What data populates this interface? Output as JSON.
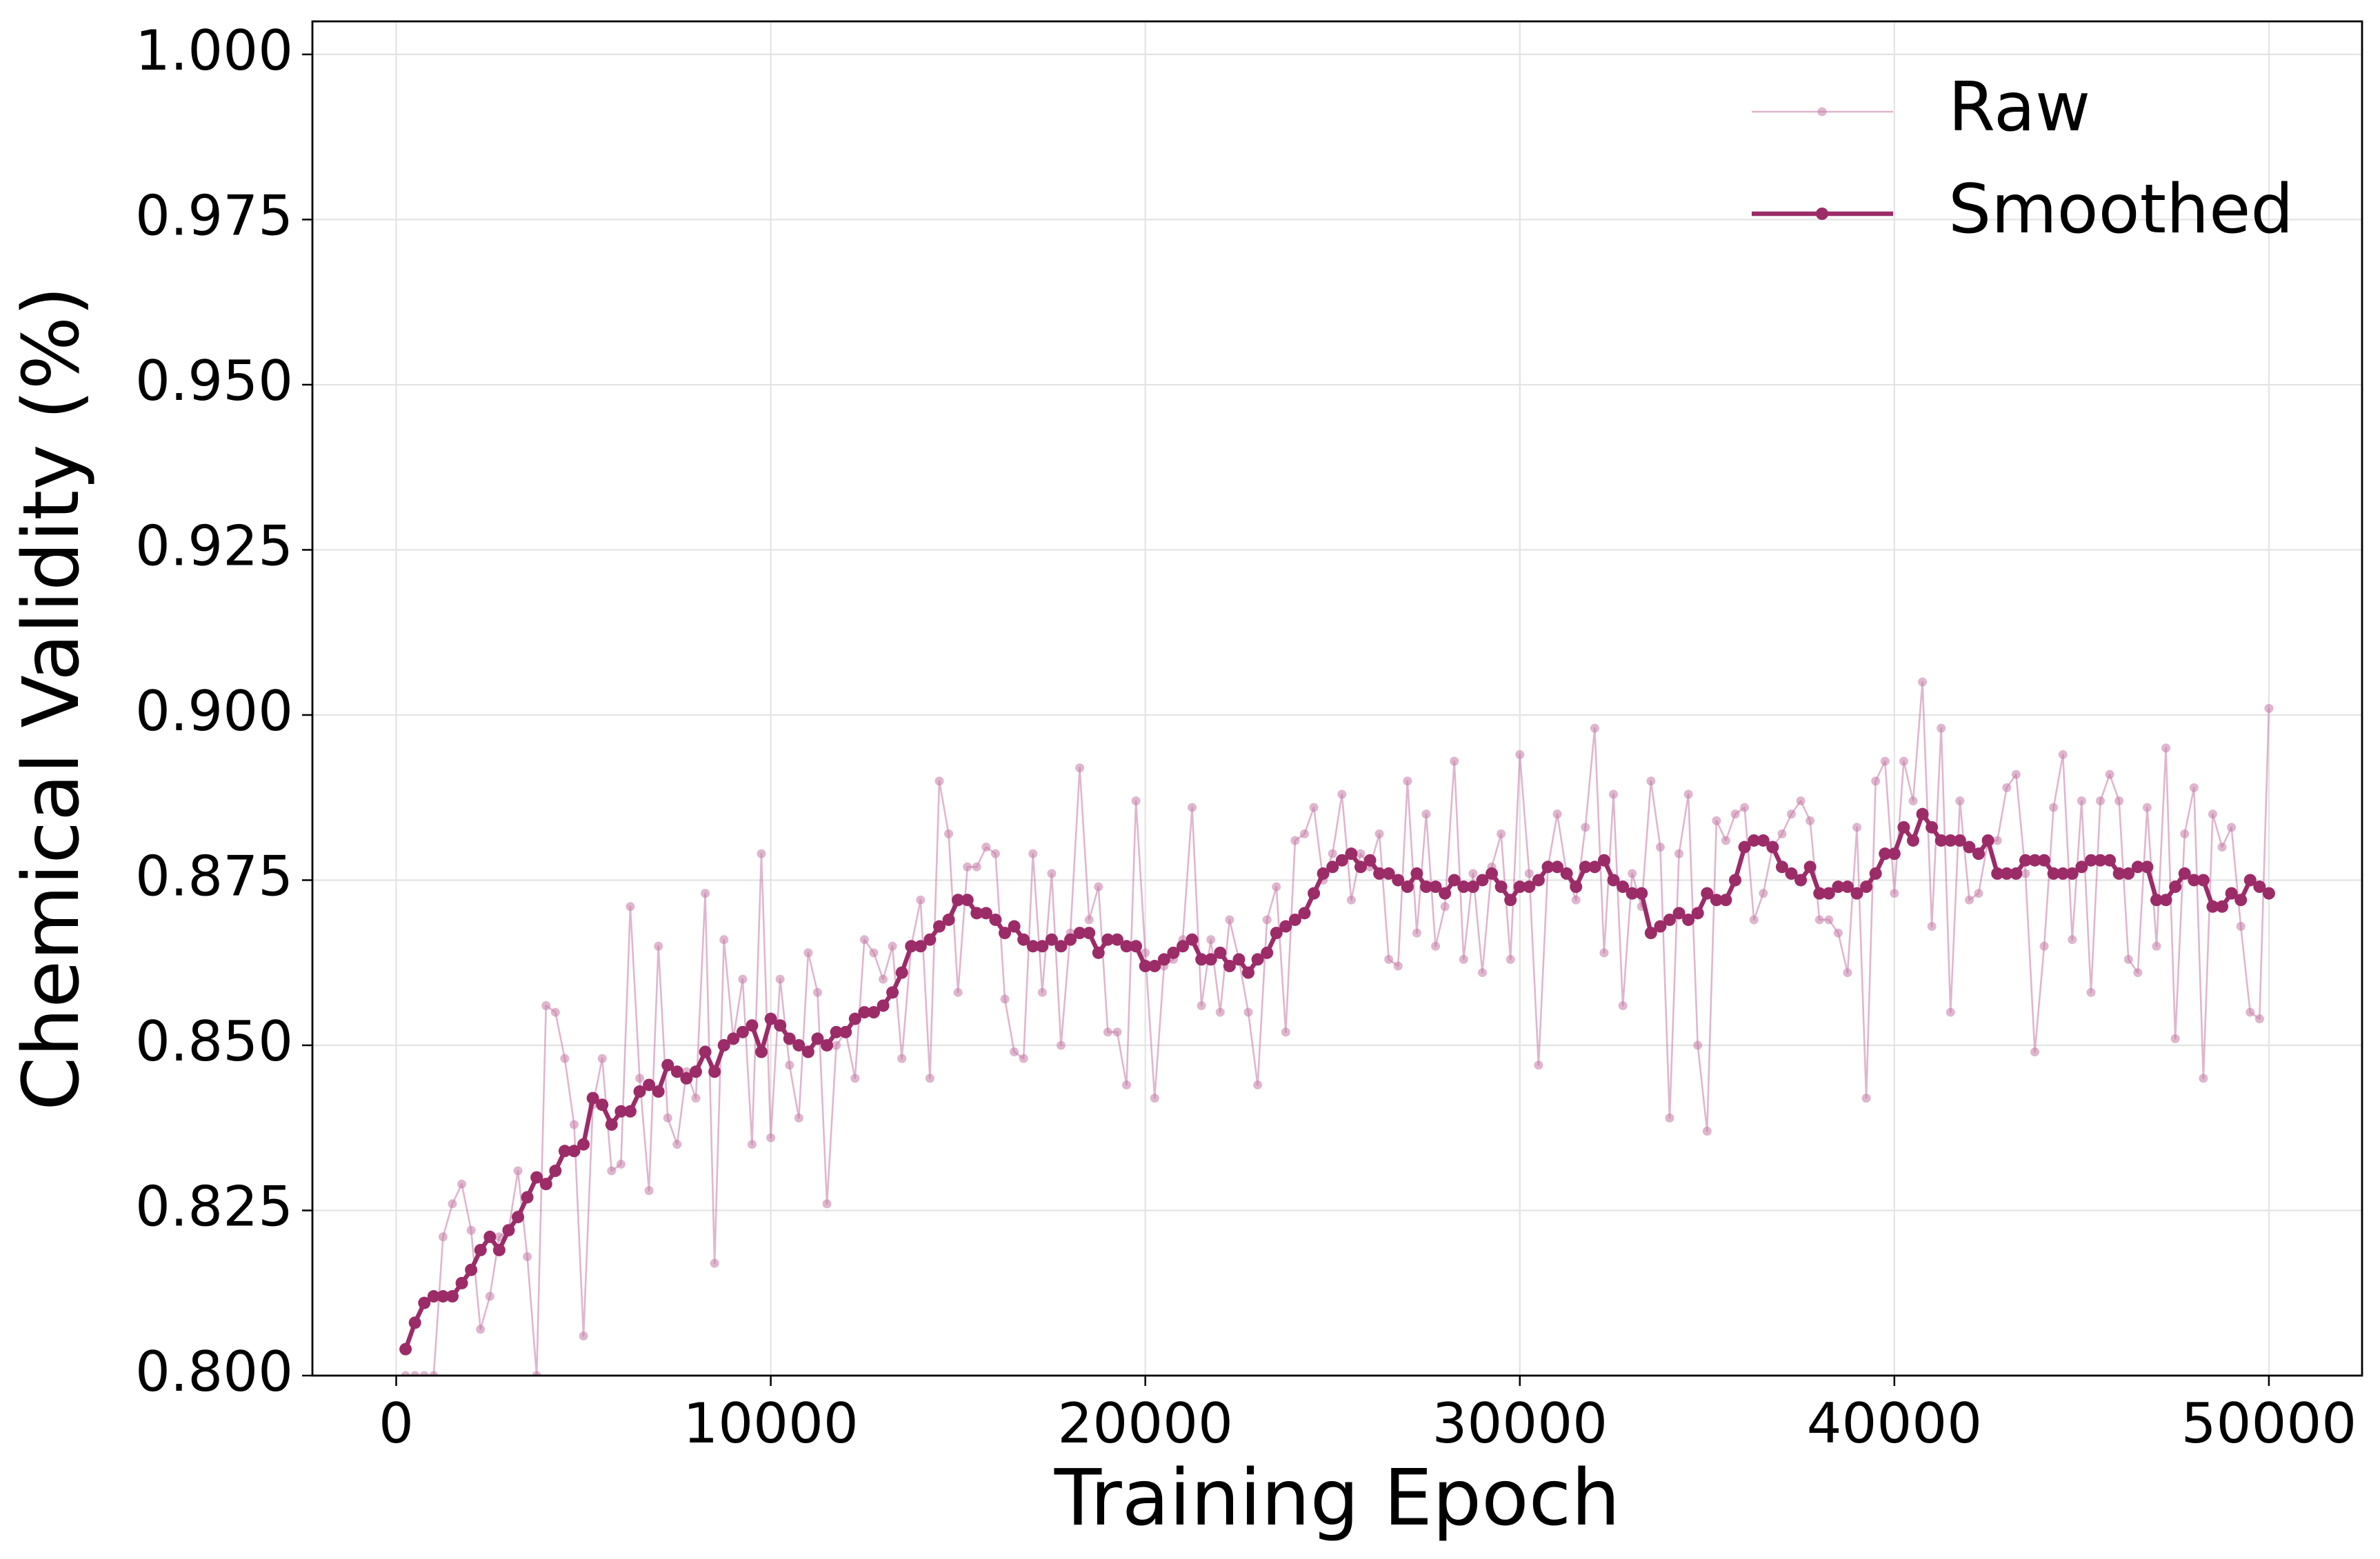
{
  "chart_data": {
    "type": "line",
    "xlabel": "Training Epoch",
    "ylabel": "Chemical Validity (%)",
    "x": [
      250,
      500,
      750,
      1000,
      1250,
      1500,
      1750,
      2000,
      2250,
      2500,
      2750,
      3000,
      3250,
      3500,
      3750,
      4000,
      4250,
      4500,
      4750,
      5000,
      5250,
      5500,
      5750,
      6000,
      6250,
      6500,
      6750,
      7000,
      7250,
      7500,
      7750,
      8000,
      8250,
      8500,
      8750,
      9000,
      9250,
      9500,
      9750,
      10000,
      10250,
      10500,
      10750,
      11000,
      11250,
      11500,
      11750,
      12000,
      12250,
      12500,
      12750,
      13000,
      13250,
      13500,
      13750,
      14000,
      14250,
      14500,
      14750,
      15000,
      15250,
      15500,
      15750,
      16000,
      16250,
      16500,
      16750,
      17000,
      17250,
      17500,
      17750,
      18000,
      18250,
      18500,
      18750,
      19000,
      19250,
      19500,
      19750,
      20000,
      20250,
      20500,
      20750,
      21000,
      21250,
      21500,
      21750,
      22000,
      22250,
      22500,
      22750,
      23000,
      23250,
      23500,
      23750,
      24000,
      24250,
      24500,
      24750,
      25000,
      25250,
      25500,
      25750,
      26000,
      26250,
      26500,
      26750,
      27000,
      27250,
      27500,
      27750,
      28000,
      28250,
      28500,
      28750,
      29000,
      29250,
      29500,
      29750,
      30000,
      30250,
      30500,
      30750,
      31000,
      31250,
      31500,
      31750,
      32000,
      32250,
      32500,
      32750,
      33000,
      33250,
      33500,
      33750,
      34000,
      34250,
      34500,
      34750,
      35000,
      35250,
      35500,
      35750,
      36000,
      36250,
      36500,
      36750,
      37000,
      37250,
      37500,
      37750,
      38000,
      38250,
      38500,
      38750,
      39000,
      39250,
      39500,
      39750,
      40000,
      40250,
      40500,
      40750,
      41000,
      41250,
      41500,
      41750,
      42000,
      42250,
      42500,
      42750,
      43000,
      43250,
      43500,
      43750,
      44000,
      44250,
      44500,
      44750,
      45000,
      45250,
      45500,
      45750,
      46000,
      46250,
      46500,
      46750,
      47000,
      47250,
      47500,
      47750,
      48000,
      48250,
      48500,
      48750,
      49000,
      49250,
      49500,
      49750,
      50000
    ],
    "series": [
      {
        "name": "Raw",
        "color": "#c47aa5",
        "values": [
          0.8,
          0.8,
          0.8,
          0.8,
          0.821,
          0.826,
          0.829,
          0.822,
          0.807,
          0.812,
          0.821,
          0.822,
          0.831,
          0.818,
          0.8,
          0.856,
          0.855,
          0.848,
          0.838,
          0.806,
          0.841,
          0.848,
          0.831,
          0.832,
          0.871,
          0.845,
          0.828,
          0.865,
          0.839,
          0.835,
          0.846,
          0.842,
          0.873,
          0.817,
          0.866,
          0.851,
          0.86,
          0.835,
          0.879,
          0.836,
          0.86,
          0.847,
          0.839,
          0.864,
          0.858,
          0.826,
          0.85,
          0.852,
          0.845,
          0.866,
          0.864,
          0.86,
          0.865,
          0.848,
          0.865,
          0.872,
          0.845,
          0.89,
          0.882,
          0.858,
          0.877,
          0.877,
          0.88,
          0.879,
          0.857,
          0.849,
          0.848,
          0.879,
          0.858,
          0.876,
          0.85,
          0.867,
          0.892,
          0.869,
          0.874,
          0.852,
          0.852,
          0.844,
          0.887,
          0.864,
          0.842,
          0.862,
          0.863,
          0.866,
          0.886,
          0.856,
          0.866,
          0.855,
          0.869,
          0.863,
          0.855,
          0.844,
          0.869,
          0.874,
          0.852,
          0.881,
          0.882,
          0.886,
          0.875,
          0.879,
          0.888,
          0.872,
          0.879,
          0.877,
          0.882,
          0.863,
          0.862,
          0.89,
          0.867,
          0.885,
          0.865,
          0.871,
          0.893,
          0.863,
          0.876,
          0.861,
          0.877,
          0.882,
          0.863,
          0.894,
          0.876,
          0.847,
          0.877,
          0.885,
          0.876,
          0.872,
          0.883,
          0.898,
          0.864,
          0.888,
          0.856,
          0.876,
          0.871,
          0.89,
          0.88,
          0.839,
          0.879,
          0.888,
          0.85,
          0.837,
          0.884,
          0.881,
          0.885,
          0.886,
          0.869,
          0.873,
          0.88,
          0.882,
          0.885,
          0.887,
          0.884,
          0.869,
          0.869,
          0.867,
          0.861,
          0.883,
          0.842,
          0.89,
          0.893,
          0.873,
          0.893,
          0.887,
          0.905,
          0.868,
          0.898,
          0.855,
          0.887,
          0.872,
          0.873,
          0.881,
          0.881,
          0.889,
          0.891,
          0.876,
          0.849,
          0.865,
          0.886,
          0.894,
          0.866,
          0.887,
          0.858,
          0.887,
          0.891,
          0.887,
          0.863,
          0.861,
          0.886,
          0.865,
          0.895,
          0.851,
          0.882,
          0.889,
          0.845,
          0.885,
          0.88,
          0.883,
          0.868,
          0.855,
          0.854,
          0.901
        ]
      },
      {
        "name": "Smoothed",
        "color": "#9b2c68",
        "values": [
          0.804,
          0.808,
          0.811,
          0.812,
          0.812,
          0.812,
          0.814,
          0.816,
          0.819,
          0.821,
          0.819,
          0.822,
          0.824,
          0.827,
          0.83,
          0.829,
          0.831,
          0.834,
          0.834,
          0.835,
          0.842,
          0.841,
          0.838,
          0.84,
          0.84,
          0.843,
          0.844,
          0.843,
          0.847,
          0.846,
          0.845,
          0.846,
          0.849,
          0.846,
          0.85,
          0.851,
          0.852,
          0.853,
          0.849,
          0.854,
          0.853,
          0.851,
          0.85,
          0.849,
          0.851,
          0.85,
          0.852,
          0.852,
          0.854,
          0.855,
          0.855,
          0.856,
          0.858,
          0.861,
          0.865,
          0.865,
          0.866,
          0.868,
          0.869,
          0.872,
          0.872,
          0.87,
          0.87,
          0.869,
          0.867,
          0.868,
          0.866,
          0.865,
          0.865,
          0.866,
          0.865,
          0.866,
          0.867,
          0.867,
          0.864,
          0.866,
          0.866,
          0.865,
          0.865,
          0.862,
          0.862,
          0.863,
          0.864,
          0.865,
          0.866,
          0.863,
          0.863,
          0.864,
          0.862,
          0.863,
          0.861,
          0.863,
          0.864,
          0.867,
          0.868,
          0.869,
          0.87,
          0.873,
          0.876,
          0.877,
          0.878,
          0.879,
          0.877,
          0.878,
          0.876,
          0.876,
          0.875,
          0.874,
          0.876,
          0.874,
          0.874,
          0.873,
          0.875,
          0.874,
          0.874,
          0.875,
          0.876,
          0.874,
          0.872,
          0.874,
          0.874,
          0.875,
          0.877,
          0.877,
          0.876,
          0.874,
          0.877,
          0.877,
          0.878,
          0.875,
          0.874,
          0.873,
          0.873,
          0.867,
          0.868,
          0.869,
          0.87,
          0.869,
          0.87,
          0.873,
          0.872,
          0.872,
          0.875,
          0.88,
          0.881,
          0.881,
          0.88,
          0.877,
          0.876,
          0.875,
          0.877,
          0.873,
          0.873,
          0.874,
          0.874,
          0.873,
          0.874,
          0.876,
          0.879,
          0.879,
          0.883,
          0.881,
          0.885,
          0.883,
          0.881,
          0.881,
          0.881,
          0.88,
          0.879,
          0.881,
          0.876,
          0.876,
          0.876,
          0.878,
          0.878,
          0.878,
          0.876,
          0.876,
          0.876,
          0.877,
          0.878,
          0.878,
          0.878,
          0.876,
          0.876,
          0.877,
          0.877,
          0.872,
          0.872,
          0.874,
          0.876,
          0.875,
          0.875,
          0.871,
          0.871,
          0.873,
          0.872,
          0.875,
          0.874,
          0.873
        ]
      }
    ],
    "xlim": [
      -2237.5,
      52487.5
    ],
    "xticks": [
      0,
      10000,
      20000,
      30000,
      40000,
      50000
    ],
    "ylim": [
      0.8,
      1.005
    ],
    "yticks": [
      {
        "value": 0.8,
        "label": "0.800"
      },
      {
        "value": 0.825,
        "label": "0.825"
      },
      {
        "value": 0.85,
        "label": "0.850"
      },
      {
        "value": 0.875,
        "label": "0.875"
      },
      {
        "value": 0.9,
        "label": "0.900"
      },
      {
        "value": 0.925,
        "label": "0.925"
      },
      {
        "value": 0.95,
        "label": "0.950"
      },
      {
        "value": 0.975,
        "label": "0.975"
      },
      {
        "value": 1.0,
        "label": "1.000"
      }
    ],
    "grid": true,
    "legend": "upper right"
  }
}
